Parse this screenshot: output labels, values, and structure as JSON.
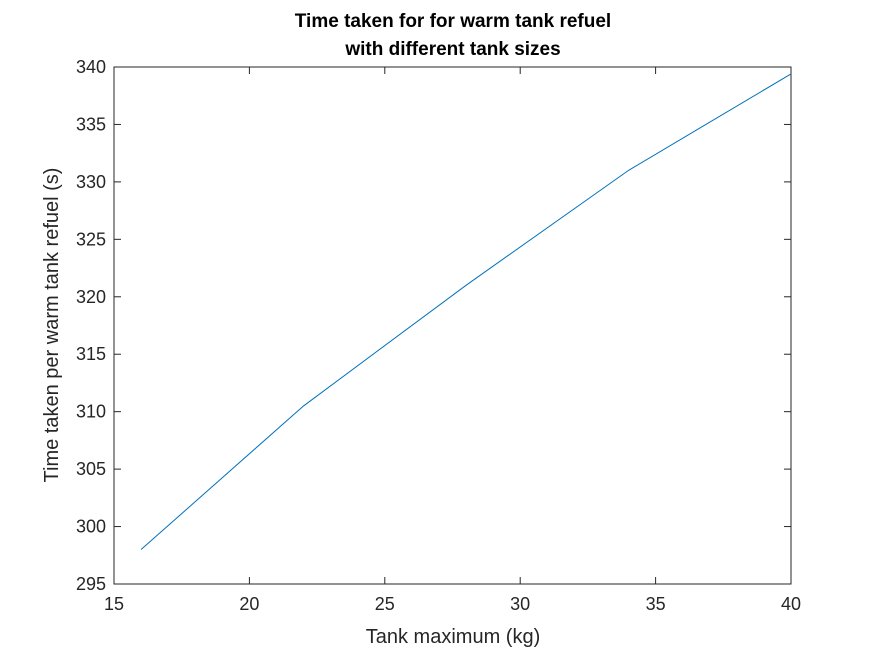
{
  "chart_data": {
    "type": "line",
    "title": [
      "Time taken for for warm tank refuel",
      "with different tank sizes"
    ],
    "xlabel": "Tank maximum (kg)",
    "ylabel": "Time taken per warm tank refuel (s)",
    "xlim": [
      15,
      40
    ],
    "ylim": [
      295,
      340
    ],
    "xticks": [
      15,
      20,
      25,
      30,
      35,
      40
    ],
    "yticks": [
      295,
      300,
      305,
      310,
      315,
      320,
      325,
      330,
      335,
      340
    ],
    "grid": false,
    "series": [
      {
        "color": "#0072BD",
        "x": [
          16,
          22,
          28,
          34,
          40
        ],
        "y": [
          298.0,
          310.5,
          321.0,
          331.0,
          339.4
        ]
      }
    ]
  }
}
